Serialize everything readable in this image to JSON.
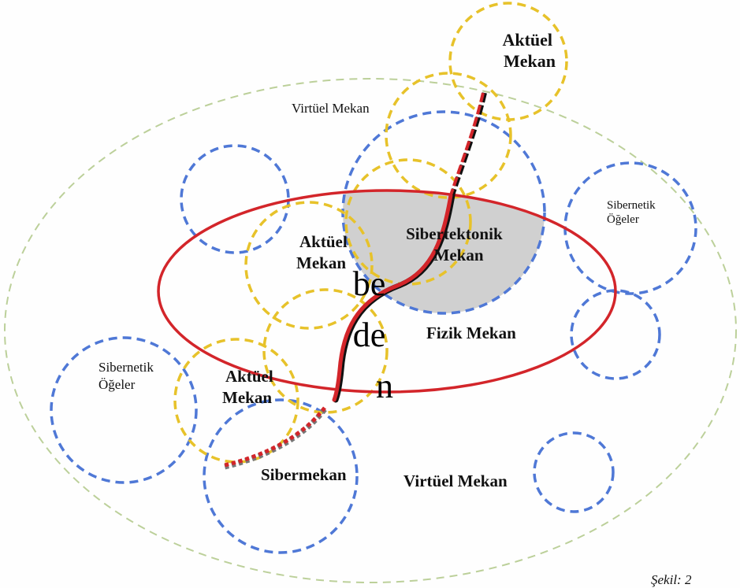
{
  "colors": {
    "outer_ellipse": "#bcd09a",
    "blue_circle": "#4f78d6",
    "yellow_circle": "#e7c22a",
    "red_ellipse": "#d3252a",
    "shaded_region": "#d0d0d0",
    "body_path": "#d3252a"
  },
  "labels": {
    "aktuel_top": [
      "Aktüel",
      "Mekan"
    ],
    "virtuel_top": "Virtüel Mekan",
    "sibernetik_right": [
      "Sibernetik",
      "Öğeler"
    ],
    "aktuel_mid": [
      "Aktüel",
      "Mekan"
    ],
    "sibertektonik": [
      "Sibertektonik",
      "Mekan"
    ],
    "beden": [
      "be",
      "de",
      "n"
    ],
    "fizik": "Fizik Mekan",
    "sibernetik_left": [
      "Sibernetik",
      "Öğeler"
    ],
    "aktuel_low": [
      "Aktüel",
      "Mekan"
    ],
    "sibermekan": "Sibermekan",
    "virtuel_bottom": "Virtüel Mekan",
    "caption": "Şekil: 2"
  }
}
